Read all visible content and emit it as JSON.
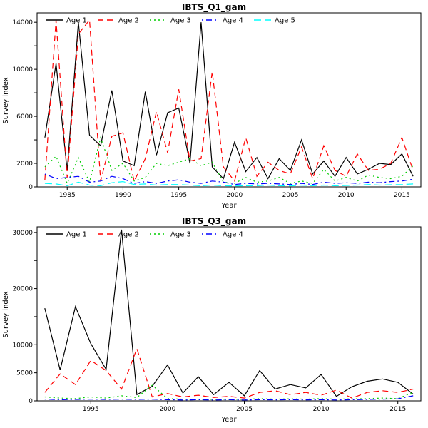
{
  "chart_data": [
    {
      "type": "line",
      "title": "IBTS_Q1_gam",
      "xlabel": "Year",
      "ylabel": "Survey index",
      "xlim": [
        1982.3,
        2016.7
      ],
      "ylim": [
        0,
        14800
      ],
      "xticks": [
        1985,
        1990,
        1995,
        2000,
        2005,
        2010,
        2015
      ],
      "ytick_values": [
        0,
        2000,
        4000,
        6000,
        8000,
        10000,
        12000,
        14000
      ],
      "ytick_labels": [
        "0",
        "2000",
        "",
        "6000",
        "",
        "10000",
        "",
        "14000"
      ],
      "grid": false,
      "legend_position": "top-left-horizontal",
      "x": [
        1983,
        1984,
        1985,
        1986,
        1987,
        1988,
        1989,
        1990,
        1991,
        1992,
        1993,
        1994,
        1995,
        1996,
        1997,
        1998,
        1999,
        2000,
        2001,
        2002,
        2003,
        2004,
        2005,
        2006,
        2007,
        2008,
        2009,
        2010,
        2011,
        2012,
        2013,
        2014,
        2015,
        2016
      ],
      "series": [
        {
          "name": "Age 1",
          "color": "#000000",
          "dash": "solid",
          "values": [
            4200,
            10500,
            1400,
            14000,
            4400,
            3500,
            8200,
            2200,
            1800,
            8100,
            2700,
            6300,
            6700,
            2000,
            14000,
            1700,
            700,
            3800,
            1300,
            2500,
            700,
            2400,
            1400,
            4000,
            1100,
            2200,
            900,
            2500,
            1100,
            1500,
            2000,
            1900,
            2800,
            900
          ]
        },
        {
          "name": "Age 2",
          "color": "#ff0000",
          "dash": "dashed",
          "values": [
            600,
            14200,
            800,
            13000,
            14200,
            500,
            4300,
            4600,
            500,
            2400,
            6400,
            2900,
            8300,
            2200,
            2400,
            9800,
            1700,
            500,
            4200,
            900,
            2100,
            1400,
            1100,
            3400,
            700,
            3500,
            1400,
            900,
            2800,
            1400,
            1500,
            2000,
            4200,
            1400
          ]
        },
        {
          "name": "Age 3",
          "color": "#00cd00",
          "dash": "dotted",
          "values": [
            1700,
            2600,
            300,
            2500,
            400,
            4200,
            1400,
            2000,
            500,
            800,
            2000,
            1800,
            2100,
            2400,
            1800,
            2100,
            400,
            300,
            800,
            400,
            500,
            800,
            300,
            500,
            300,
            1500,
            500,
            800,
            500,
            1000,
            800,
            700,
            900,
            1800
          ]
        },
        {
          "name": "Age 4",
          "color": "#0000ff",
          "dash": "dotdash",
          "values": [
            1100,
            700,
            800,
            900,
            400,
            500,
            900,
            700,
            300,
            450,
            300,
            500,
            600,
            400,
            300,
            500,
            400,
            200,
            300,
            250,
            300,
            250,
            200,
            300,
            200,
            400,
            300,
            350,
            300,
            400,
            350,
            450,
            500,
            650
          ]
        },
        {
          "name": "Age 5",
          "color": "#00ffff",
          "dash": "longdash",
          "values": [
            300,
            250,
            100,
            400,
            150,
            100,
            350,
            450,
            200,
            250,
            150,
            200,
            200,
            150,
            100,
            150,
            100,
            80,
            100,
            100,
            150,
            100,
            80,
            150,
            100,
            150,
            100,
            120,
            150,
            200,
            150,
            180,
            200,
            250
          ]
        }
      ]
    },
    {
      "type": "line",
      "title": "IBTS_Q3_gam",
      "xlabel": "Year",
      "ylabel": "Survey index",
      "xlim": [
        1991.5,
        2016.5
      ],
      "ylim": [
        0,
        31000
      ],
      "xticks": [
        1995,
        2000,
        2005,
        2010,
        2015
      ],
      "ytick_values": [
        0,
        5000,
        10000,
        15000,
        20000,
        25000,
        30000
      ],
      "ytick_labels": [
        "0",
        "5000",
        "10000",
        "",
        "20000",
        "",
        "30000"
      ],
      "grid": false,
      "legend_position": "top-left-horizontal",
      "x": [
        1992,
        1993,
        1994,
        1995,
        1996,
        1997,
        1998,
        1999,
        2000,
        2001,
        2002,
        2003,
        2004,
        2005,
        2006,
        2007,
        2008,
        2009,
        2010,
        2011,
        2012,
        2013,
        2014,
        2015,
        2016
      ],
      "series": [
        {
          "name": "Age 1",
          "color": "#000000",
          "dash": "solid",
          "values": [
            16500,
            5500,
            16800,
            10200,
            5600,
            30500,
            1100,
            2600,
            6400,
            1400,
            4300,
            1100,
            3300,
            900,
            5400,
            2100,
            2900,
            2300,
            4700,
            800,
            2500,
            3500,
            3900,
            3300,
            1200
          ]
        },
        {
          "name": "Age 2",
          "color": "#ff0000",
          "dash": "dashed",
          "values": [
            1500,
            4800,
            2900,
            7200,
            5400,
            2100,
            9300,
            700,
            1300,
            700,
            1000,
            600,
            800,
            500,
            1500,
            1800,
            1100,
            1500,
            1000,
            1900,
            500,
            1500,
            1800,
            1500,
            2100
          ]
        },
        {
          "name": "Age 3",
          "color": "#00cd00",
          "dash": "dotted",
          "values": [
            700,
            500,
            400,
            700,
            500,
            900,
            600,
            2800,
            400,
            300,
            300,
            250,
            300,
            250,
            400,
            300,
            350,
            300,
            400,
            300,
            350,
            400,
            500,
            400,
            1500
          ]
        },
        {
          "name": "Age 4",
          "color": "#0000ff",
          "dash": "dotdash",
          "values": [
            300,
            200,
            250,
            300,
            250,
            300,
            250,
            300,
            200,
            150,
            200,
            150,
            200,
            150,
            200,
            180,
            200,
            180,
            200,
            150,
            200,
            250,
            300,
            350,
            900
          ]
        }
      ]
    }
  ]
}
